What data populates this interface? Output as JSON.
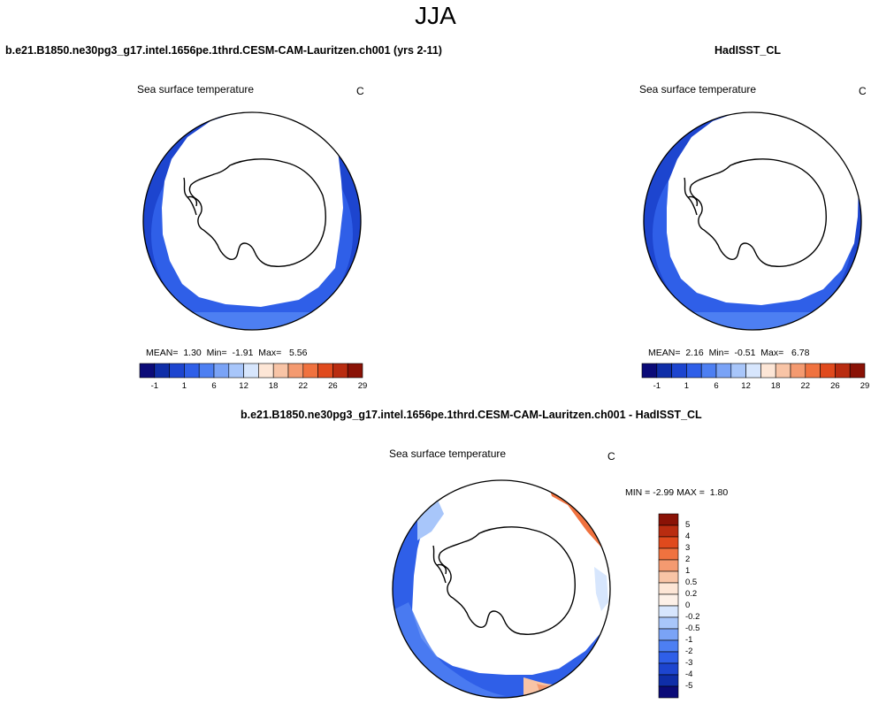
{
  "main_title": "JJA",
  "panels": [
    {
      "header": "b.e21.B1850.ne30pg3_g17.intel.1656pe.1thrd.CESM-CAM-Lauritzen.ch001 (yrs 2-11)",
      "plot_title": "Sea surface temperature",
      "units": "C",
      "stats": {
        "mean_label": "MEAN=",
        "mean": "1.30",
        "min_label": "Min=",
        "min": "-1.91",
        "max_label": "Max=",
        "max": "5.56"
      }
    },
    {
      "header": "HadISST_CL",
      "plot_title": "Sea surface temperature",
      "units": "C",
      "stats": {
        "mean_label": "MEAN=",
        "mean": "2.16",
        "min_label": "Min=",
        "min": "-0.51",
        "max_label": "Max=",
        "max": "6.78"
      }
    },
    {
      "header": "b.e21.B1850.ne30pg3_g17.intel.1656pe.1thrd.CESM-CAM-Lauritzen.ch001 - HadISST_CL",
      "plot_title": "Sea surface temperature",
      "units": "C",
      "stats": {
        "min_label": "MIN =",
        "min": "-2.99",
        "max_label": "MAX =",
        "max": "1.80"
      }
    }
  ],
  "colorbar_abs": {
    "labels": [
      "-1",
      "1",
      "6",
      "12",
      "18",
      "22",
      "26",
      "29"
    ],
    "colors": [
      "#0b0b78",
      "#0f2ea8",
      "#1d45cf",
      "#2f5fe8",
      "#4d7ff2",
      "#7aa3f6",
      "#a8c6fa",
      "#d7e6fd",
      "#fde6d6",
      "#f8c4a6",
      "#f49a70",
      "#f0723f",
      "#e04a1d",
      "#b92c10",
      "#8a1206"
    ]
  },
  "colorbar_diff": {
    "labels": [
      "5",
      "4",
      "3",
      "2",
      "1",
      "0.5",
      "0.2",
      "0",
      "-0.2",
      "-0.5",
      "-1",
      "-2",
      "-3",
      "-4",
      "-5"
    ],
    "colors": [
      "#8a1206",
      "#b92c10",
      "#e04a1d",
      "#f0723f",
      "#f49a70",
      "#f8c4a6",
      "#fde6d6",
      "#fdf1e8",
      "#d7e6fd",
      "#a8c6fa",
      "#7aa3f6",
      "#4d7ff2",
      "#2f5fe8",
      "#1d45cf",
      "#0f2ea8",
      "#0b0b78"
    ]
  },
  "chart_data": [
    {
      "type": "heatmap",
      "title": "Sea surface temperature",
      "subtitle": "b.e21.B1850.ne30pg3_g17.intel.1656pe.1thrd.CESM-CAM-Lauritzen.ch001 (yrs 2-11)",
      "units": "C",
      "projection": "south polar stereographic",
      "summary": {
        "mean": 1.3,
        "min": -1.91,
        "max": 5.56
      },
      "colorbar_levels": [
        -1,
        1,
        6,
        12,
        18,
        22,
        26,
        29
      ]
    },
    {
      "type": "heatmap",
      "title": "Sea surface temperature",
      "subtitle": "HadISST_CL",
      "units": "C",
      "projection": "south polar stereographic",
      "summary": {
        "mean": 2.16,
        "min": -0.51,
        "max": 6.78
      },
      "colorbar_levels": [
        -1,
        1,
        6,
        12,
        18,
        22,
        26,
        29
      ]
    },
    {
      "type": "heatmap",
      "title": "Sea surface temperature",
      "subtitle": "b.e21.B1850.ne30pg3_g17.intel.1656pe.1thrd.CESM-CAM-Lauritzen.ch001 - HadISST_CL",
      "units": "C",
      "projection": "south polar stereographic",
      "summary": {
        "min": -2.99,
        "max": 1.8
      },
      "colorbar_levels": [
        -5,
        -4,
        -3,
        -2,
        -1,
        -0.5,
        -0.2,
        0,
        0.2,
        0.5,
        1,
        2,
        3,
        4,
        5
      ]
    }
  ]
}
